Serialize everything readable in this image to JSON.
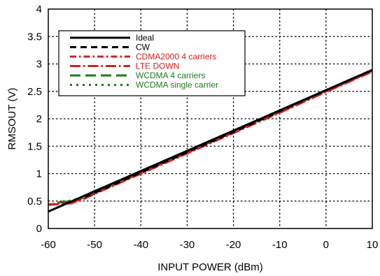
{
  "chart_data": {
    "type": "line",
    "xlabel": "INPUT POWER (dBm)",
    "ylabel": "RMSOUT (V)",
    "xlim": [
      -60,
      10
    ],
    "ylim": [
      0,
      4
    ],
    "xticks": [
      -60,
      -50,
      -40,
      -30,
      -20,
      -10,
      0,
      10
    ],
    "yticks": [
      0,
      0.5,
      1,
      1.5,
      2,
      2.5,
      3,
      3.5,
      4
    ],
    "ytick_labels": [
      "0",
      "0.5",
      "1",
      "1.5",
      "2",
      "2.5",
      "3",
      "3.5",
      "4"
    ],
    "grid": true,
    "legend_position": "top-left",
    "series": [
      {
        "name": "Ideal",
        "color": "#000000",
        "dash": "solid",
        "x": [
          -60,
          10
        ],
        "y": [
          0.31,
          2.89
        ]
      },
      {
        "name": "CW",
        "color": "#000000",
        "dash": "dashed",
        "x": [
          -52,
          -50,
          -40,
          -30,
          -20,
          -10,
          0,
          10
        ],
        "y": [
          0.58,
          0.65,
          1.02,
          1.39,
          1.76,
          2.14,
          2.52,
          2.89
        ]
      },
      {
        "name": "CDMA2000 4 carriers",
        "color": "#d42020",
        "dash": "dashdot",
        "x": [
          -60,
          -55,
          -52,
          -50,
          -40,
          -30,
          -20,
          -10,
          0,
          10
        ],
        "y": [
          0.44,
          0.47,
          0.56,
          0.64,
          1.01,
          1.38,
          1.75,
          2.12,
          2.5,
          2.87
        ]
      },
      {
        "name": "LTE DOWN",
        "color": "#d42020",
        "dash": "longdashdot",
        "x": [
          -60,
          -55,
          -52,
          -50,
          -40,
          -30,
          -20,
          -10,
          0,
          10
        ],
        "y": [
          0.43,
          0.46,
          0.55,
          0.63,
          1.0,
          1.37,
          1.74,
          2.11,
          2.49,
          2.86
        ]
      },
      {
        "name": "WCDMA 4 carriers",
        "color": "#1e7a1e",
        "dash": "longdash",
        "x": [
          -58,
          -55,
          -52,
          -50,
          -40,
          -30,
          -20,
          -10,
          0,
          10
        ],
        "y": [
          0.47,
          0.5,
          0.57,
          0.65,
          1.02,
          1.39,
          1.76,
          2.13,
          2.51,
          2.88
        ]
      },
      {
        "name": "WCDMA single carrier",
        "color": "#1e7a1e",
        "dash": "dotted",
        "x": [
          -57,
          -55,
          -52,
          -50,
          -40,
          -30,
          -20,
          -10,
          0,
          10
        ],
        "y": [
          0.49,
          0.51,
          0.58,
          0.66,
          1.03,
          1.4,
          1.77,
          2.14,
          2.52,
          2.89
        ]
      }
    ]
  }
}
